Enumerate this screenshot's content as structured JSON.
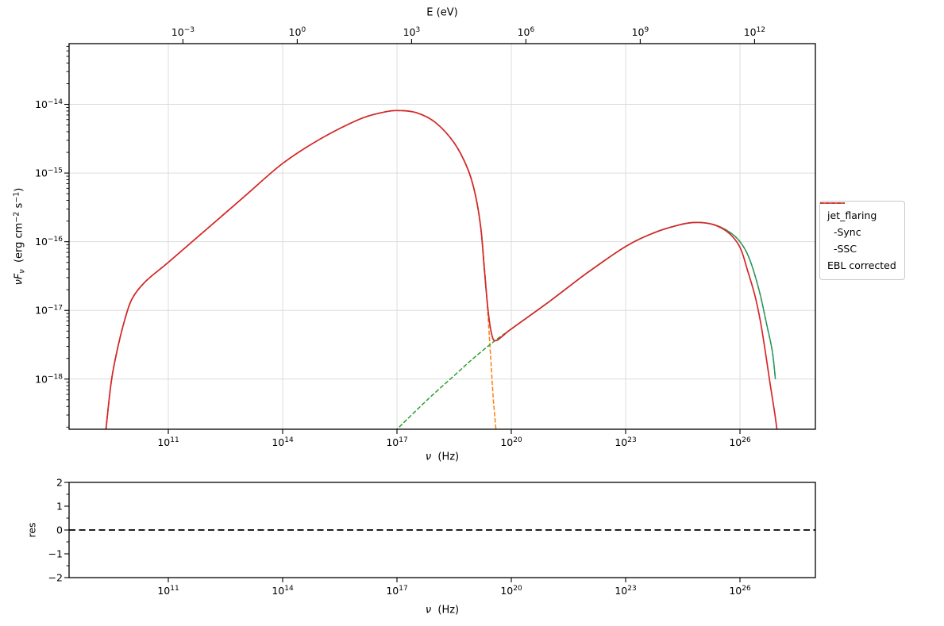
{
  "labels": {
    "top_xlabel": "E (eV)",
    "nu": "ν",
    "hz_unit": "  (Hz)",
    "ylabel_nuF": "νF",
    "ylabel_sub_nu": "ν",
    "ylabel_unit_1": "  (erg cm",
    "ylabel_sup_1": "−2",
    "ylabel_unit_2": " s",
    "ylabel_sup_2": "−1",
    "ylabel_close": ")",
    "res_ylabel": "res"
  },
  "legend": {
    "entries": [
      {
        "label": "jet_flaring",
        "color": "#1f77b4",
        "dash": true
      },
      {
        "label": "  -Sync",
        "color": "#ff7f0e",
        "dash": true
      },
      {
        "label": "  -SSC",
        "color": "#2ca02c",
        "dash": true
      },
      {
        "label": "EBL corrected",
        "color": "#d62728",
        "dash": false
      }
    ]
  },
  "chart_data": [
    {
      "id": "sed-main",
      "type": "line",
      "xscale": "log",
      "yscale": "log",
      "xlabel": "ν (Hz)",
      "top_xlabel": "E (eV)",
      "ylabel": "νFν (erg cm−2 s−1)",
      "xlim_log10": [
        8.396,
        27.979
      ],
      "ylim_log10": [
        -18.73,
        -13.116
      ],
      "x_tick_exponents": [
        11,
        14,
        17,
        20,
        23,
        26
      ],
      "y_tick_exponents": [
        -14,
        -15,
        -16,
        -17,
        -18
      ],
      "top_tick_exponents": [
        -3,
        0,
        3,
        6,
        9,
        12
      ],
      "top_axis_offset_log10": 14.383,
      "grid": true,
      "legend_position": "outside-right",
      "series": [
        {
          "name": "jet_flaring",
          "color": "#1f77b4",
          "style": "dashed",
          "points_log10": [
            [
              9.36,
              -18.75
            ],
            [
              9.5,
              -18.05
            ],
            [
              9.65,
              -17.6
            ],
            [
              9.85,
              -17.15
            ],
            [
              10.05,
              -16.83
            ],
            [
              10.4,
              -16.58
            ],
            [
              11.0,
              -16.3
            ],
            [
              12.0,
              -15.82
            ],
            [
              13.0,
              -15.34
            ],
            [
              14.0,
              -14.86
            ],
            [
              15.0,
              -14.5
            ],
            [
              16.0,
              -14.22
            ],
            [
              16.6,
              -14.12
            ],
            [
              17.0,
              -14.09
            ],
            [
              17.5,
              -14.12
            ],
            [
              18.0,
              -14.26
            ],
            [
              18.5,
              -14.56
            ],
            [
              18.85,
              -14.93
            ],
            [
              19.05,
              -15.3
            ],
            [
              19.2,
              -15.8
            ],
            [
              19.3,
              -16.45
            ],
            [
              19.4,
              -17.05
            ],
            [
              19.5,
              -17.38
            ],
            [
              19.6,
              -17.44
            ],
            [
              19.8,
              -17.36
            ],
            [
              20.0,
              -17.27
            ],
            [
              21.0,
              -16.87
            ],
            [
              22.0,
              -16.45
            ],
            [
              23.0,
              -16.07
            ],
            [
              23.7,
              -15.88
            ],
            [
              24.3,
              -15.77
            ],
            [
              24.8,
              -15.72
            ],
            [
              25.3,
              -15.75
            ],
            [
              25.7,
              -15.85
            ],
            [
              26.0,
              -16.0
            ],
            [
              26.25,
              -16.25
            ],
            [
              26.5,
              -16.7
            ],
            [
              26.7,
              -17.2
            ],
            [
              26.85,
              -17.6
            ],
            [
              26.93,
              -18.0
            ]
          ]
        },
        {
          "name": "-Sync",
          "color": "#ff7f0e",
          "style": "dashed",
          "points_log10": [
            [
              9.36,
              -18.75
            ],
            [
              9.5,
              -18.05
            ],
            [
              9.65,
              -17.6
            ],
            [
              9.85,
              -17.15
            ],
            [
              10.05,
              -16.83
            ],
            [
              10.4,
              -16.58
            ],
            [
              11.0,
              -16.3
            ],
            [
              12.0,
              -15.82
            ],
            [
              13.0,
              -15.34
            ],
            [
              14.0,
              -14.86
            ],
            [
              15.0,
              -14.5
            ],
            [
              16.0,
              -14.22
            ],
            [
              16.6,
              -14.12
            ],
            [
              17.0,
              -14.09
            ],
            [
              17.5,
              -14.12
            ],
            [
              18.0,
              -14.26
            ],
            [
              18.5,
              -14.56
            ],
            [
              18.85,
              -14.93
            ],
            [
              19.05,
              -15.3
            ],
            [
              19.2,
              -15.8
            ],
            [
              19.3,
              -16.4
            ],
            [
              19.38,
              -17.0
            ],
            [
              19.46,
              -17.7
            ],
            [
              19.53,
              -18.3
            ],
            [
              19.6,
              -18.75
            ]
          ]
        },
        {
          "name": "-SSC",
          "color": "#2ca02c",
          "style": "dashed",
          "points_log10": [
            [
              17.0,
              -18.73
            ],
            [
              17.8,
              -18.3
            ],
            [
              18.5,
              -17.95
            ],
            [
              19.0,
              -17.7
            ],
            [
              19.55,
              -17.45
            ],
            [
              20.0,
              -17.27
            ],
            [
              21.0,
              -16.87
            ],
            [
              22.0,
              -16.45
            ],
            [
              23.0,
              -16.07
            ],
            [
              23.7,
              -15.88
            ],
            [
              24.3,
              -15.77
            ],
            [
              24.8,
              -15.72
            ],
            [
              25.3,
              -15.75
            ],
            [
              25.7,
              -15.85
            ],
            [
              26.0,
              -16.0
            ],
            [
              26.25,
              -16.25
            ],
            [
              26.5,
              -16.7
            ],
            [
              26.7,
              -17.2
            ],
            [
              26.85,
              -17.6
            ],
            [
              26.93,
              -18.0
            ]
          ]
        },
        {
          "name": "EBL corrected",
          "color": "#d62728",
          "style": "solid",
          "points_log10": [
            [
              9.36,
              -18.75
            ],
            [
              9.5,
              -18.05
            ],
            [
              9.65,
              -17.6
            ],
            [
              9.85,
              -17.15
            ],
            [
              10.05,
              -16.83
            ],
            [
              10.4,
              -16.58
            ],
            [
              11.0,
              -16.3
            ],
            [
              12.0,
              -15.82
            ],
            [
              13.0,
              -15.34
            ],
            [
              14.0,
              -14.86
            ],
            [
              15.0,
              -14.5
            ],
            [
              16.0,
              -14.22
            ],
            [
              16.6,
              -14.12
            ],
            [
              17.0,
              -14.09
            ],
            [
              17.5,
              -14.12
            ],
            [
              18.0,
              -14.26
            ],
            [
              18.5,
              -14.56
            ],
            [
              18.85,
              -14.93
            ],
            [
              19.05,
              -15.3
            ],
            [
              19.2,
              -15.8
            ],
            [
              19.3,
              -16.45
            ],
            [
              19.4,
              -17.05
            ],
            [
              19.5,
              -17.38
            ],
            [
              19.6,
              -17.44
            ],
            [
              19.8,
              -17.36
            ],
            [
              20.0,
              -17.27
            ],
            [
              21.0,
              -16.87
            ],
            [
              22.0,
              -16.45
            ],
            [
              23.0,
              -16.07
            ],
            [
              23.7,
              -15.88
            ],
            [
              24.3,
              -15.77
            ],
            [
              24.8,
              -15.72
            ],
            [
              25.3,
              -15.75
            ],
            [
              25.7,
              -15.87
            ],
            [
              26.0,
              -16.08
            ],
            [
              26.2,
              -16.42
            ],
            [
              26.4,
              -16.8
            ],
            [
              26.55,
              -17.2
            ],
            [
              26.68,
              -17.65
            ],
            [
              26.8,
              -18.1
            ],
            [
              26.9,
              -18.45
            ],
            [
              26.97,
              -18.73
            ]
          ]
        }
      ]
    },
    {
      "id": "residuals",
      "type": "line",
      "xscale": "log",
      "xlabel": "ν (Hz)",
      "ylabel": "res",
      "xlim_log10": [
        8.396,
        27.979
      ],
      "ylim": [
        -2,
        2
      ],
      "x_tick_exponents": [
        11,
        14,
        17,
        20,
        23,
        26
      ],
      "y_ticks": [
        -2,
        -1,
        0,
        1,
        2
      ],
      "grid": false,
      "series": [
        {
          "name": "zero-reference",
          "color": "#000000",
          "style": "dashed",
          "y_constant": 0
        }
      ]
    }
  ]
}
